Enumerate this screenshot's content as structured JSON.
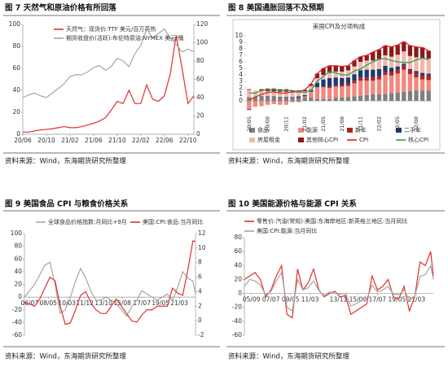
{
  "chart_data": [
    {
      "type": "line",
      "title": "图 7 天然气和原油价格有所回落",
      "source": "资料来源：Wind，东海期货研究所整理",
      "x": [
        "20/06",
        "20/07",
        "20/08",
        "20/09",
        "20/10",
        "20/11",
        "20/12",
        "21/01",
        "21/02",
        "21/03",
        "21/04",
        "21/05",
        "21/06",
        "21/07",
        "21/08",
        "21/09",
        "21/10",
        "21/11",
        "21/12",
        "22/01",
        "22/02",
        "22/03",
        "22/04",
        "22/05",
        "22/06",
        "22/07",
        "22/08",
        "22/09",
        "22/10",
        "22/11"
      ],
      "xticks": [
        "20/06",
        "20/10",
        "21/02",
        "21/06",
        "21/10",
        "22/02",
        "22/06",
        "22/10"
      ],
      "ylim": [
        0,
        100
      ],
      "yticks": [
        0,
        20,
        40,
        60,
        80,
        100
      ],
      "y2lim": [
        0,
        120
      ],
      "y2ticks": [
        0,
        20,
        40,
        60,
        80,
        100,
        120
      ],
      "series": [
        {
          "name": "天然气：现货价:TTF 美元/百万英热",
          "color": "#e03030",
          "values": [
            2,
            2,
            3,
            4,
            4.5,
            5,
            6,
            7,
            6,
            6,
            7,
            8.5,
            10,
            12,
            15,
            22,
            30,
            28,
            40,
            28,
            28,
            45,
            32,
            30,
            35,
            55,
            90,
            60,
            28,
            35
          ]
        },
        {
          "name": "期货收盘价(活跃):布伦特原油:NYMEX 美元/桶",
          "color": "#a6a6a6",
          "axis": "y2",
          "values": [
            40,
            43,
            45,
            42,
            40,
            45,
            50,
            55,
            63,
            65,
            65,
            68,
            73,
            75,
            70,
            74,
            83,
            80,
            74,
            88,
            97,
            115,
            105,
            110,
            115,
            105,
            98,
            90,
            93,
            90
          ]
        }
      ]
    },
    {
      "type": "bar",
      "title": "图 8 美国通胀回落不及预期",
      "subtitle": "美国CPI及分项构成",
      "source": "资料来源：Wind，东海期货研究所整理",
      "categories": [
        "20/05",
        null,
        null,
        "20/08",
        null,
        null,
        "20/11",
        null,
        null,
        "21/02",
        null,
        null,
        "21/05",
        null,
        null,
        "21/08",
        null,
        null,
        "21/11",
        null,
        null,
        "22/02",
        null,
        null,
        "22/05",
        null,
        null,
        "22/08",
        null,
        null
      ],
      "ylim": [
        -2,
        10
      ],
      "yticks": [
        0,
        1,
        2,
        3,
        4,
        5,
        6,
        7,
        8,
        9,
        10
      ],
      "series": [
        {
          "name": "食品",
          "color": "#7f7f7f",
          "values": [
            0.6,
            0.6,
            0.6,
            0.6,
            0.6,
            0.5,
            0.5,
            0.5,
            0.5,
            0.5,
            0.5,
            0.3,
            0.3,
            0.3,
            0.5,
            0.5,
            0.6,
            0.7,
            0.8,
            0.9,
            1.0,
            1.0,
            1.1,
            1.2,
            1.3,
            1.4,
            1.5,
            1.6,
            1.6,
            1.6
          ]
        },
        {
          "name": "能源",
          "color": "#f4877f",
          "values": [
            -1.3,
            -0.9,
            -0.8,
            -0.6,
            -0.5,
            -0.6,
            -0.6,
            -0.2,
            -0.2,
            0.2,
            0.9,
            1.8,
            1.8,
            1.7,
            1.7,
            1.7,
            1.7,
            2.0,
            2.3,
            2.2,
            2.1,
            2.3,
            2.9,
            2.7,
            2.9,
            3.4,
            2.6,
            2.0,
            1.7,
            1.6
          ]
        },
        {
          "name": "新车",
          "color": "#b22222",
          "values": [
            0,
            0,
            0,
            0,
            0,
            0,
            0,
            0,
            0,
            0,
            0,
            0,
            0.1,
            0.2,
            0.2,
            0.3,
            0.4,
            0.4,
            0.5,
            0.5,
            0.5,
            0.5,
            0.5,
            0.6,
            0.6,
            0.6,
            0.6,
            0.7,
            0.7,
            0.7
          ]
        },
        {
          "name": "二手车",
          "color": "#1f3a6e",
          "values": [
            -0.1,
            0,
            0.1,
            0.1,
            0.1,
            0.1,
            0.1,
            0.1,
            0.2,
            0.2,
            0.3,
            0.7,
            1.1,
            1.3,
            1.2,
            1.0,
            0.9,
            1.0,
            1.1,
            1.2,
            1.2,
            1.1,
            0.9,
            0.6,
            0.5,
            0.3,
            0.2,
            0.3,
            0.3,
            0.3
          ]
        },
        {
          "name": "房屋租金",
          "color": "#f2b8b0",
          "values": [
            1.1,
            1.0,
            0.9,
            0.8,
            0.8,
            0.8,
            0.8,
            0.7,
            0.6,
            0.6,
            0.6,
            0.7,
            0.7,
            0.8,
            0.9,
            1.0,
            1.1,
            1.2,
            1.3,
            1.4,
            1.4,
            1.5,
            1.6,
            1.7,
            1.8,
            1.9,
            2.0,
            2.1,
            2.2,
            2.3
          ]
        },
        {
          "name": "其他核心CPI",
          "color": "#8b1a1a",
          "values": [
            0.1,
            0,
            0.2,
            0.4,
            0.4,
            0.4,
            0.4,
            0.3,
            0.3,
            0.2,
            0.3,
            0.7,
            1.0,
            1.1,
            0.9,
            0.8,
            0.7,
            0.9,
            0.8,
            0.8,
            1.3,
            1.5,
            1.5,
            1.5,
            1.5,
            1.5,
            1.6,
            1.6,
            1.7,
            1.2
          ]
        },
        {
          "name": "CPI",
          "color": "#e02020",
          "type": "line",
          "values": [
            0.1,
            0.6,
            1.0,
            1.3,
            1.4,
            1.2,
            1.2,
            1.4,
            1.4,
            1.7,
            2.6,
            4.2,
            5.0,
            5.4,
            5.4,
            5.3,
            5.4,
            6.2,
            6.8,
            7.0,
            7.5,
            7.9,
            8.5,
            8.3,
            8.6,
            9.1,
            8.5,
            8.3,
            8.2,
            7.7
          ]
        },
        {
          "name": "核心CPI",
          "color": "#2ca05a",
          "type": "line",
          "values": [
            1.2,
            1.2,
            1.6,
            1.7,
            1.7,
            1.6,
            1.6,
            1.6,
            1.4,
            1.3,
            1.6,
            3.0,
            3.8,
            4.5,
            4.3,
            4.0,
            4.0,
            4.6,
            4.9,
            5.5,
            6.0,
            6.4,
            6.5,
            6.2,
            6.0,
            5.9,
            5.9,
            6.3,
            6.6,
            6.3
          ]
        }
      ]
    },
    {
      "type": "line",
      "title": "图 9 美国食品 CPI 与粮食价格关系",
      "source": "资料来源：Wind，东海期货研究所整理",
      "x": [
        "06/01",
        "06/07",
        "07/01",
        "07/07",
        "08/01",
        "08/07",
        "09/01",
        "09/07",
        "10/01",
        "10/07",
        "11/01",
        "11/07",
        "12/01",
        "12/07",
        "13/01",
        "13/07",
        "14/01",
        "14/07",
        "15/01",
        "15/07",
        "16/01",
        "16/07",
        "17/01",
        "17/07",
        "18/01",
        "18/07",
        "19/01",
        "19/07",
        "20/01",
        "20/07",
        "21/01",
        "21/07",
        "22/01",
        "22/07",
        "22/10"
      ],
      "xticks": [
        "06/07",
        "08/05",
        "10/03",
        "11/12",
        "13/10",
        "15/08",
        "17/07",
        "19/05",
        "21/03"
      ],
      "ylim": [
        -60,
        100
      ],
      "yticks": [
        -60,
        -40,
        -20,
        0,
        20,
        40,
        60,
        80,
        100
      ],
      "y2lim": [
        -2,
        12
      ],
      "y2ticks": [
        -2,
        0,
        2,
        4,
        6,
        8,
        10,
        12
      ],
      "series": [
        {
          "name": "全球食品价格指数:月同比+9月",
          "color": "#a6a6a6",
          "values": [
            0,
            10,
            20,
            35,
            50,
            55,
            20,
            -25,
            -20,
            0,
            25,
            45,
            30,
            10,
            -5,
            -5,
            0,
            -5,
            -10,
            -20,
            -30,
            -15,
            -5,
            10,
            5,
            0,
            -5,
            0,
            5,
            -5,
            15,
            40,
            30,
            25,
            5
          ]
        },
        {
          "name": "美国:CPI:食品:当月同比",
          "color": "#e03030",
          "axis": "y2",
          "values": [
            2.5,
            2.3,
            2.0,
            3.0,
            4.5,
            6.0,
            5.5,
            2.0,
            -0.5,
            -0.3,
            1.5,
            3.5,
            4.0,
            2.5,
            1.5,
            1.0,
            1.0,
            2.0,
            3.0,
            2.0,
            1.0,
            0,
            -0.2,
            0.8,
            1.5,
            1.5,
            2.0,
            2.0,
            2.0,
            4.5,
            3.8,
            3.5,
            7.0,
            11.0,
            10.9
          ]
        }
      ]
    },
    {
      "type": "line",
      "title": "图 10 美国能源价格与能源 CPI 关系",
      "source": "资料来源：Wind，东海期货研究所整理",
      "x": [
        "05/01",
        "05/07",
        "06/01",
        "06/07",
        "07/01",
        "07/07",
        "08/01",
        "08/07",
        "09/01",
        "09/07",
        "10/01",
        "10/07",
        "11/01",
        "11/07",
        "12/01",
        "12/07",
        "13/01",
        "13/07",
        "14/01",
        "14/07",
        "15/01",
        "15/07",
        "16/01",
        "16/07",
        "17/01",
        "17/07",
        "18/01",
        "18/07",
        "19/01",
        "19/07",
        "20/01",
        "20/07",
        "21/01",
        "21/07",
        "22/01",
        "22/07",
        "22/10"
      ],
      "xticks": [
        "05/09",
        "07/07",
        "09/05",
        "11/03",
        "13/11",
        "15/09",
        "17/07",
        "19/05",
        "21/03"
      ],
      "ylim": [
        -60,
        80
      ],
      "yticks": [
        -60,
        -40,
        -20,
        0,
        20,
        40,
        60,
        80
      ],
      "series": [
        {
          "name": "零售价:汽油(常规):美国:东海岸地区:新英格兰地区:当月同比",
          "color": "#e03030",
          "values": [
            20,
            25,
            30,
            20,
            -5,
            5,
            25,
            40,
            -30,
            -35,
            35,
            5,
            15,
            35,
            5,
            -5,
            0,
            3,
            -5,
            -3,
            -30,
            -25,
            -20,
            -15,
            25,
            5,
            10,
            20,
            -5,
            -8,
            10,
            -25,
            -5,
            45,
            40,
            60,
            25
          ]
        },
        {
          "name": "美国:CPI:能源:当月同比",
          "color": "#a6a6a6",
          "values": [
            10,
            20,
            18,
            12,
            -2,
            3,
            18,
            30,
            -20,
            -25,
            20,
            5,
            8,
            18,
            4,
            -3,
            2,
            0,
            -1,
            0,
            -18,
            -15,
            -10,
            -8,
            12,
            2,
            5,
            10,
            -1,
            -2,
            5,
            -10,
            -4,
            24,
            27,
            40,
            20
          ]
        }
      ]
    }
  ]
}
